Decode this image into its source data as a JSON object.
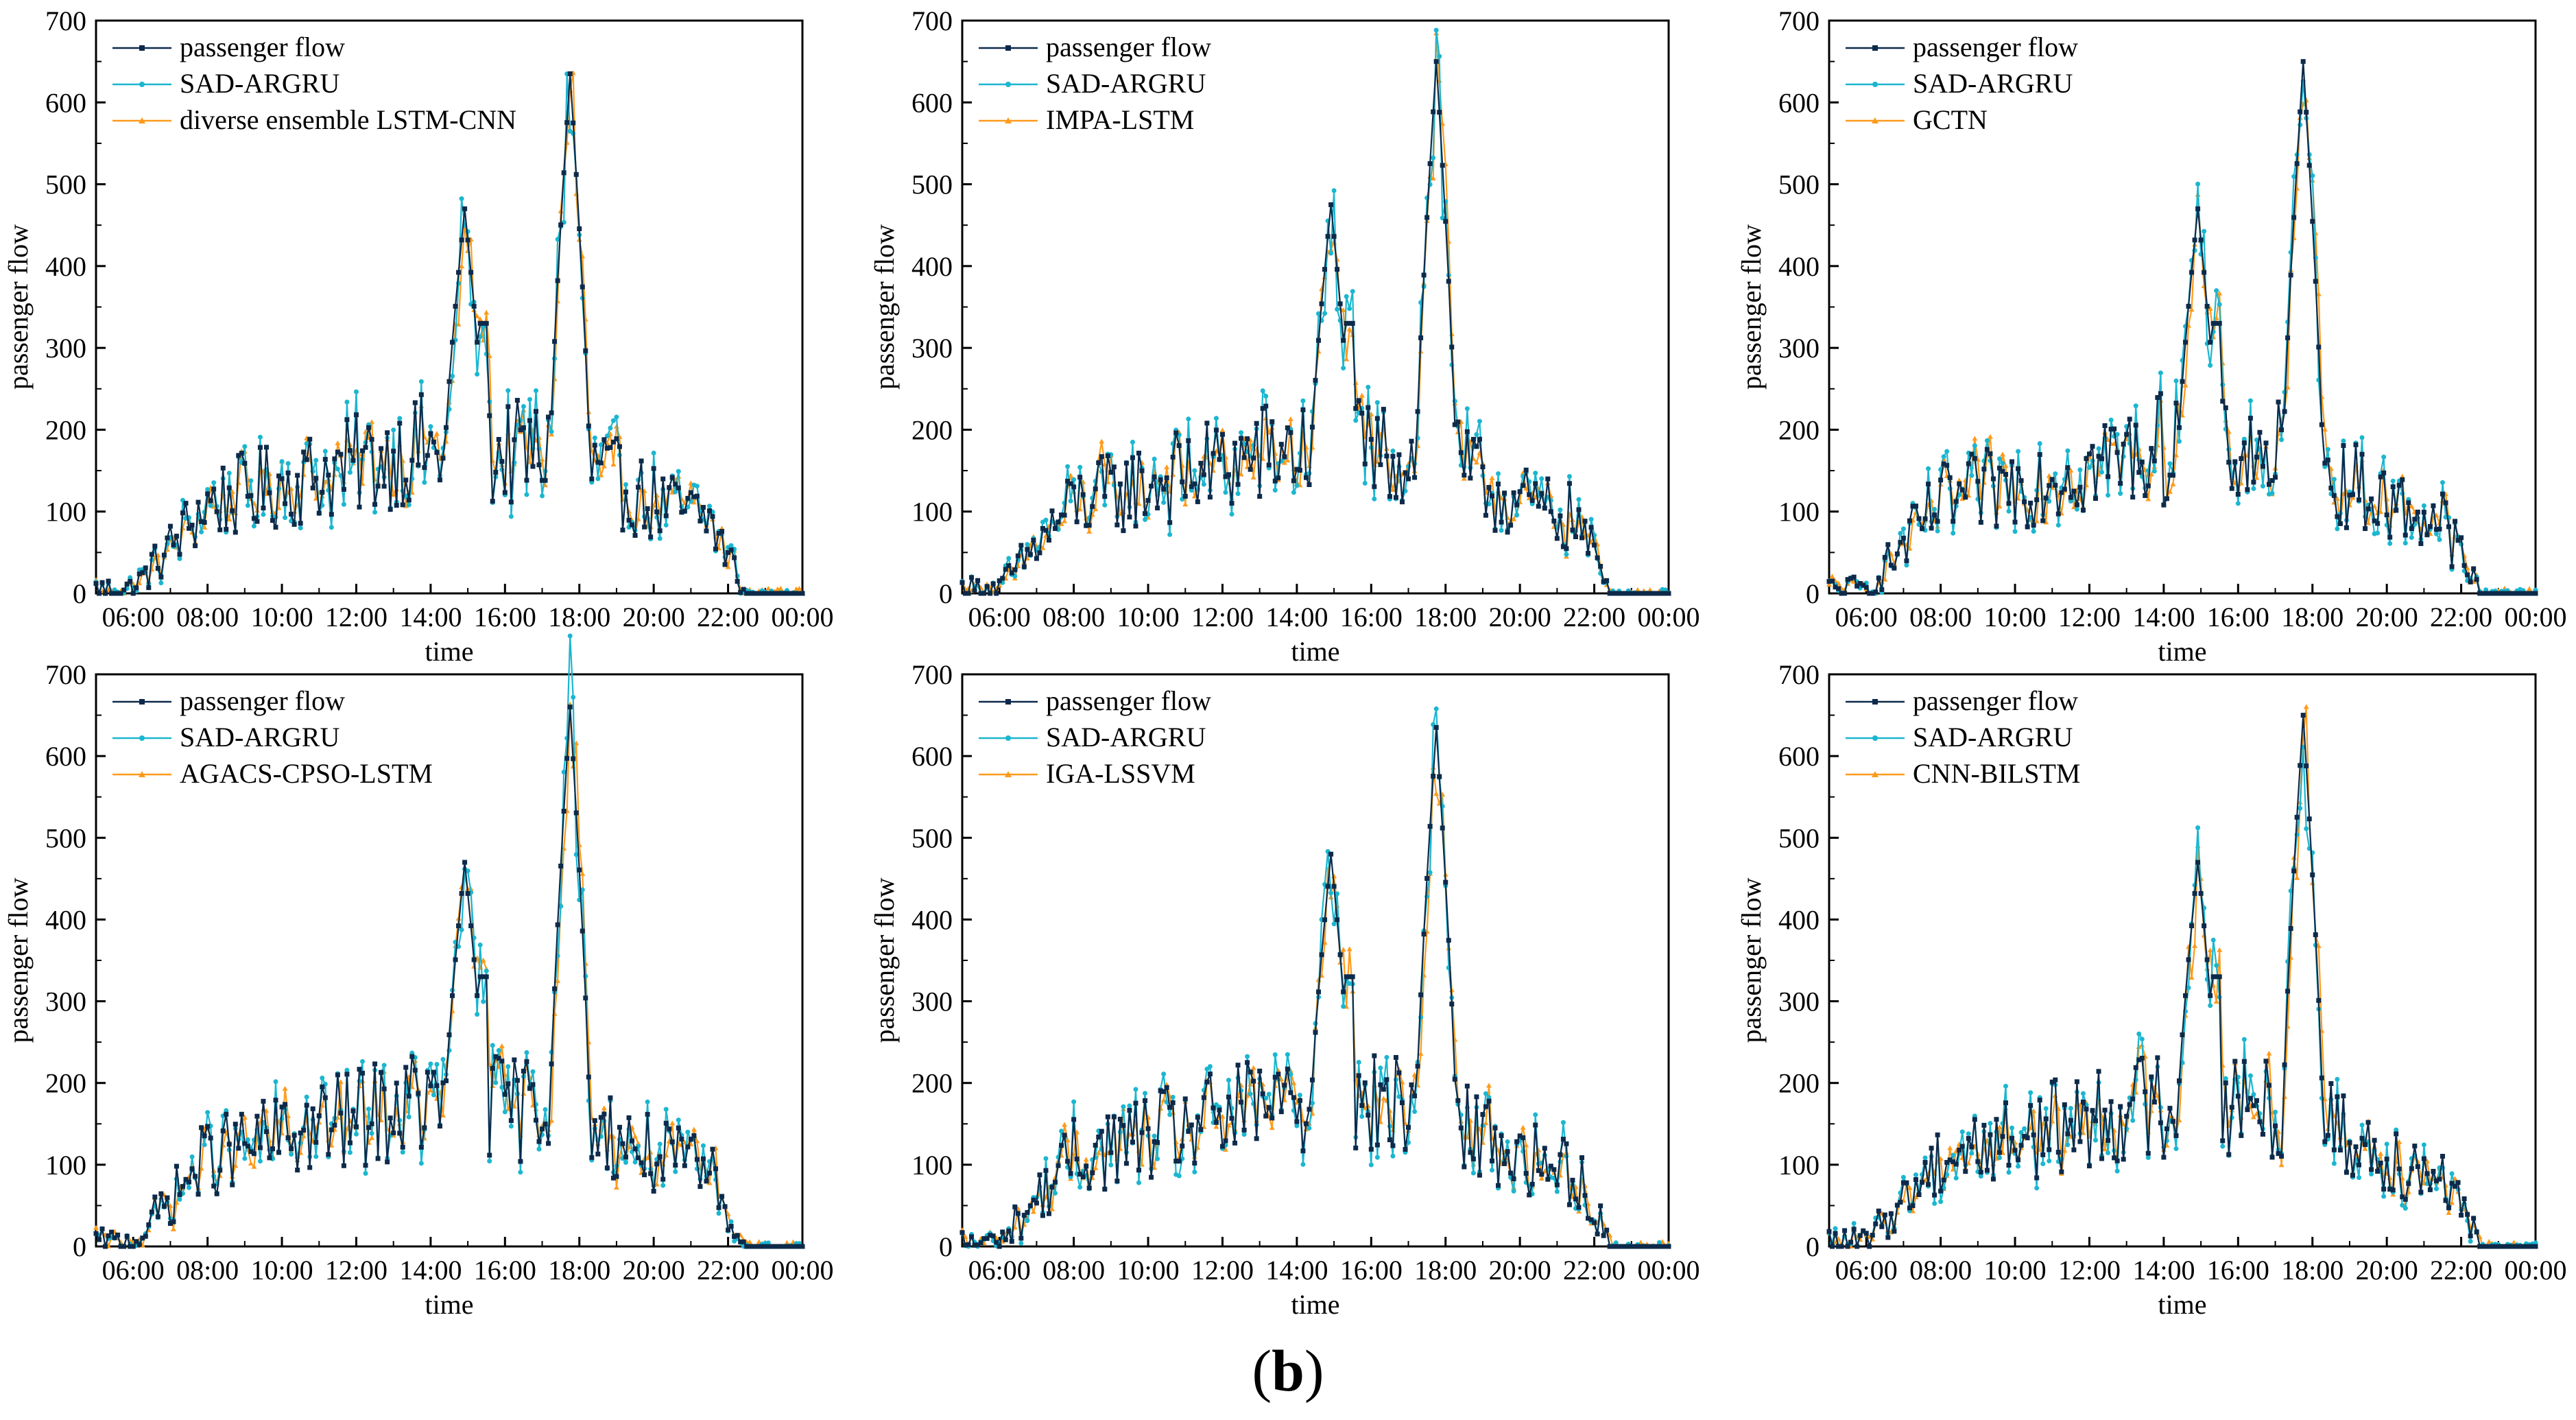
{
  "caption": {
    "open": "(",
    "letter": "b",
    "close": ")"
  },
  "colors": {
    "series1": "#0d2a4a",
    "series2": "#1bb6d0",
    "series3": "#ff9a1a"
  },
  "chart_data": [
    {
      "type": "line",
      "xlabel": "time",
      "ylabel": "passenger flow",
      "ylim": [
        0,
        700
      ],
      "yticks": [
        "0",
        "100",
        "200",
        "300",
        "400",
        "500",
        "600",
        "700"
      ],
      "xticks": [
        "06:00",
        "08:00",
        "10:00",
        "12:00",
        "14:00",
        "16:00",
        "18:00",
        "20:00",
        "22:00",
        "00:00"
      ],
      "legend": [
        "passenger flow",
        "SAD-ARGRU",
        "diverse ensemble LSTM-CNN"
      ],
      "legend_position": "top-left",
      "peaks": [
        {
          "x": "14:55",
          "y": 470
        },
        {
          "x": "17:45",
          "y": 635
        }
      ]
    },
    {
      "type": "line",
      "xlabel": "time",
      "ylabel": "passenger flow",
      "ylim": [
        0,
        700
      ],
      "yticks": [
        "0",
        "100",
        "200",
        "300",
        "400",
        "500",
        "600",
        "700"
      ],
      "xticks": [
        "06:00",
        "08:00",
        "10:00",
        "12:00",
        "14:00",
        "16:00",
        "18:00",
        "20:00",
        "22:00",
        "00:00"
      ],
      "legend": [
        "passenger flow",
        "SAD-ARGRU",
        "IMPA-LSTM"
      ],
      "legend_position": "top-left",
      "peaks": [
        {
          "x": "14:55",
          "y": 475
        },
        {
          "x": "17:45",
          "y": 650
        }
      ]
    },
    {
      "type": "line",
      "xlabel": "time",
      "ylabel": "passenger flow",
      "ylim": [
        0,
        700
      ],
      "yticks": [
        "0",
        "100",
        "200",
        "300",
        "400",
        "500",
        "600",
        "700"
      ],
      "xticks": [
        "06:00",
        "08:00",
        "10:00",
        "12:00",
        "14:00",
        "16:00",
        "18:00",
        "20:00",
        "22:00",
        "00:00"
      ],
      "legend": [
        "passenger flow",
        "SAD-ARGRU",
        "GCTN"
      ],
      "legend_position": "top-left",
      "peaks": [
        {
          "x": "14:55",
          "y": 470
        },
        {
          "x": "17:45",
          "y": 650
        }
      ]
    },
    {
      "type": "line",
      "xlabel": "time",
      "ylabel": "passenger flow",
      "ylim": [
        0,
        700
      ],
      "yticks": [
        "0",
        "100",
        "200",
        "300",
        "400",
        "500",
        "600",
        "700"
      ],
      "xticks": [
        "06:00",
        "08:00",
        "10:00",
        "12:00",
        "14:00",
        "16:00",
        "18:00",
        "20:00",
        "22:00",
        "00:00"
      ],
      "legend": [
        "passenger flow",
        "SAD-ARGRU",
        "AGACS-CPSO-LSTM"
      ],
      "legend_position": "top-left",
      "peaks": [
        {
          "x": "14:55",
          "y": 470
        },
        {
          "x": "17:45",
          "y": 660
        }
      ]
    },
    {
      "type": "line",
      "xlabel": "time",
      "ylabel": "passenger flow",
      "ylim": [
        0,
        700
      ],
      "yticks": [
        "0",
        "100",
        "200",
        "300",
        "400",
        "500",
        "600",
        "700"
      ],
      "xticks": [
        "06:00",
        "08:00",
        "10:00",
        "12:00",
        "14:00",
        "16:00",
        "18:00",
        "20:00",
        "22:00",
        "00:00"
      ],
      "legend": [
        "passenger flow",
        "SAD-ARGRU",
        "IGA-LSSVM"
      ],
      "legend_position": "top-left",
      "peaks": [
        {
          "x": "14:55",
          "y": 480
        },
        {
          "x": "17:45",
          "y": 635
        }
      ]
    },
    {
      "type": "line",
      "xlabel": "time",
      "ylabel": "passenger flow",
      "ylim": [
        0,
        700
      ],
      "yticks": [
        "0",
        "100",
        "200",
        "300",
        "400",
        "500",
        "600",
        "700"
      ],
      "xticks": [
        "06:00",
        "08:00",
        "10:00",
        "12:00",
        "14:00",
        "16:00",
        "18:00",
        "20:00",
        "22:00",
        "00:00"
      ],
      "legend": [
        "passenger flow",
        "SAD-ARGRU",
        "CNN-BILSTM"
      ],
      "legend_position": "top-left",
      "peaks": [
        {
          "x": "14:55",
          "y": 470
        },
        {
          "x": "17:45",
          "y": 650
        }
      ]
    }
  ]
}
